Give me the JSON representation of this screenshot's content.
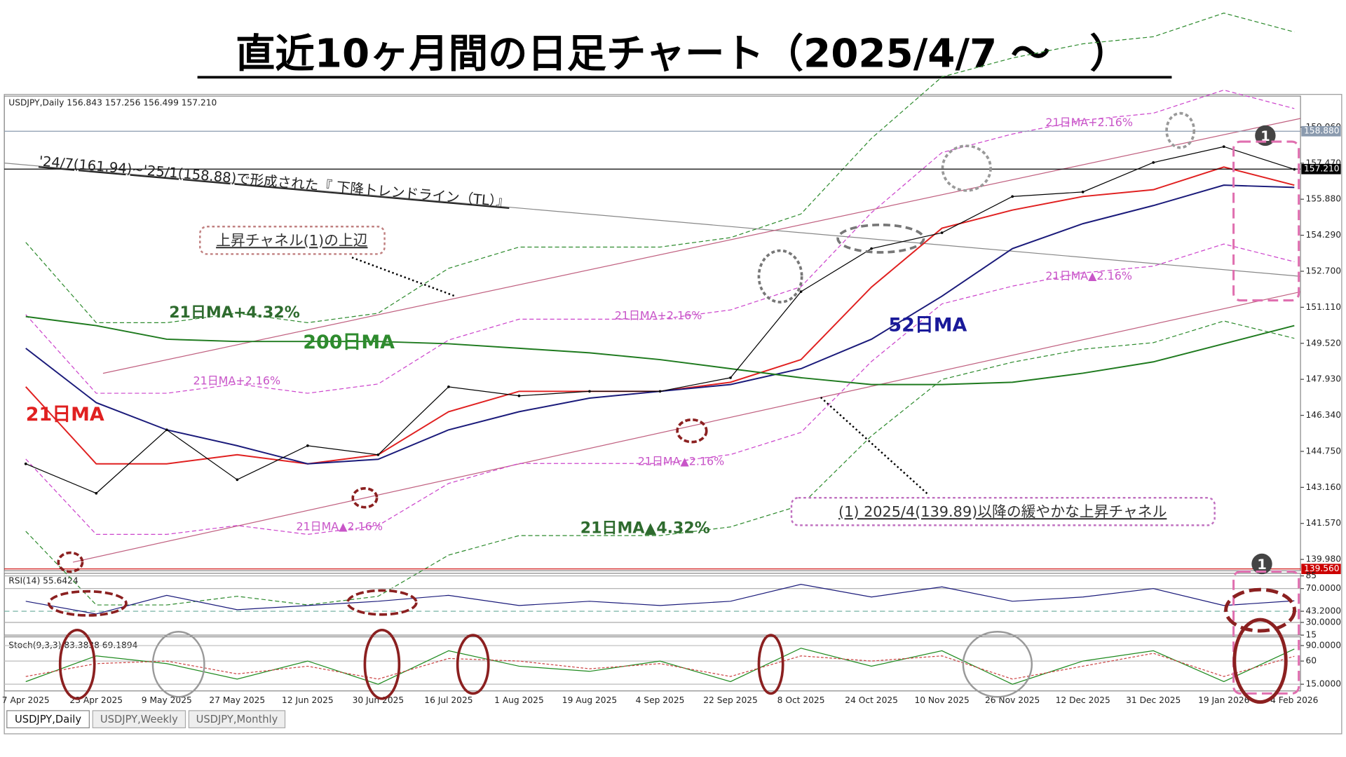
{
  "title": "直近10ヶ月間の日足チャート（2025/4/7 ～　）",
  "chart_data": {
    "type": "line",
    "header": "USDJPY,Daily  156.843 157.256 156.499 157.210",
    "categories": [
      "7 Apr 2025",
      "23 Apr 2025",
      "9 May 2025",
      "27 May 2025",
      "12 Jun 2025",
      "30 Jun 2025",
      "16 Jul 2025",
      "1 Aug 2025",
      "19 Aug 2025",
      "4 Sep 2025",
      "22 Sep 2025",
      "8 Oct 2025",
      "24 Oct 2025",
      "10 Nov 2025",
      "26 Nov 2025",
      "12 Dec 2025",
      "31 Dec 2025",
      "19 Jan 2026",
      "4 Feb 2026"
    ],
    "values": [
      144.2,
      142.9,
      145.7,
      143.5,
      145.0,
      144.6,
      147.6,
      147.2,
      147.4,
      147.4,
      148.0,
      151.8,
      153.7,
      154.4,
      156.0,
      156.2,
      157.5,
      158.2,
      157.2
    ],
    "color": "#000000",
    "series": [
      {
        "name": "21日MA",
        "color": "#e02020",
        "values": [
          147.6,
          144.2,
          144.2,
          144.6,
          144.2,
          144.6,
          146.5,
          147.4,
          147.4,
          147.4,
          147.8,
          148.8,
          152.0,
          154.6,
          155.4,
          156.0,
          156.3,
          157.3,
          156.5
        ]
      },
      {
        "name": "52日MA",
        "color": "#1a1a7a",
        "values": [
          149.3,
          146.9,
          145.7,
          145.0,
          144.2,
          144.4,
          145.7,
          146.5,
          147.1,
          147.4,
          147.7,
          148.4,
          149.7,
          151.6,
          153.7,
          154.8,
          155.6,
          156.5,
          156.4
        ]
      },
      {
        "name": "200日MA",
        "color": "#1e7a1e",
        "values": [
          150.7,
          150.3,
          149.7,
          149.6,
          149.6,
          149.6,
          149.5,
          149.3,
          149.1,
          148.8,
          148.4,
          148.0,
          147.7,
          147.7,
          147.8,
          148.2,
          148.7,
          149.5,
          150.3
        ]
      }
    ],
    "envelope_pcts": [
      2.16,
      4.32
    ],
    "envelope_colors": [
      "#cc44cc",
      "#2e8b2e"
    ],
    "ylim": [
      139.48,
      160.43
    ],
    "yticks": [
      {
        "value": 139.98,
        "label": "139.980"
      },
      {
        "value": 141.57,
        "label": "141.570"
      },
      {
        "value": 143.16,
        "label": "143.160"
      },
      {
        "value": 144.75,
        "label": "144.750"
      },
      {
        "value": 146.34,
        "label": "146.340"
      },
      {
        "value": 147.93,
        "label": "147.930"
      },
      {
        "value": 149.52,
        "label": "149.520"
      },
      {
        "value": 151.11,
        "label": "151.110"
      },
      {
        "value": 152.7,
        "label": "152.700"
      },
      {
        "value": 154.29,
        "label": "154.290"
      },
      {
        "value": 155.88,
        "label": "155.880"
      },
      {
        "value": 157.47,
        "label": "157.470"
      },
      {
        "value": 159.06,
        "label": "159.060"
      }
    ],
    "price_markers": [
      {
        "value": 158.88,
        "label": "158.880",
        "color": "#8a9aae"
      },
      {
        "value": 157.21,
        "label": "157.210",
        "color": "#000000"
      },
      {
        "value": 139.56,
        "label": "139.560",
        "color": "#cc0000"
      }
    ],
    "rsi": {
      "header": "RSI(14) 55.6424",
      "color": "#1a1a7a",
      "ylim": [
        15,
        88
      ],
      "yticks": [
        85,
        {
          "value": 70,
          "label": "70.0000"
        },
        {
          "value": 43.2,
          "label": "43.2000"
        },
        {
          "value": 30,
          "label": "30.0000"
        },
        15
      ],
      "values": [
        55,
        40,
        62,
        45,
        50,
        55,
        62,
        50,
        55,
        50,
        55,
        75,
        60,
        72,
        55,
        60,
        70,
        50,
        55.6
      ]
    },
    "stoch": {
      "header": "Stoch(9,3,3) 83.3838 69.1894",
      "ylim": [
        2,
        107
      ],
      "yticks": [
        {
          "value": 90,
          "label": "90.0000"
        },
        60,
        {
          "value": 15,
          "label": "15.0000"
        }
      ],
      "main": {
        "color": "#1e8a1e",
        "values": [
          20,
          70,
          55,
          25,
          60,
          15,
          80,
          50,
          40,
          60,
          20,
          85,
          50,
          80,
          15,
          60,
          80,
          20,
          83.4
        ]
      },
      "signal": {
        "color": "#cc4444",
        "values": [
          30,
          55,
          60,
          35,
          50,
          25,
          65,
          60,
          45,
          55,
          30,
          70,
          60,
          70,
          25,
          50,
          75,
          30,
          69.2
        ]
      }
    },
    "annotations": [
      "'24/7(161.94)~'25/1(158.88)で形成された『 下降トレンドライン（TL）』",
      "上昇チャネル(1)の上辺",
      "21日MA+4.32%",
      "21日MA+2.16%",
      "21日MA+2.16%",
      "21日MA+2.16%",
      "21日MA▲2.16%",
      "21日MA▲2.16%",
      "21日MA▲2.16%",
      "21日MA▲4.32%",
      "(1) 2025/4(139.89)以降の緩やかな上昇チャネル",
      "1",
      "1"
    ]
  },
  "tabs": [
    "USDJPY,Daily",
    "USDJPY,Weekly",
    "USDJPY,Monthly"
  ]
}
